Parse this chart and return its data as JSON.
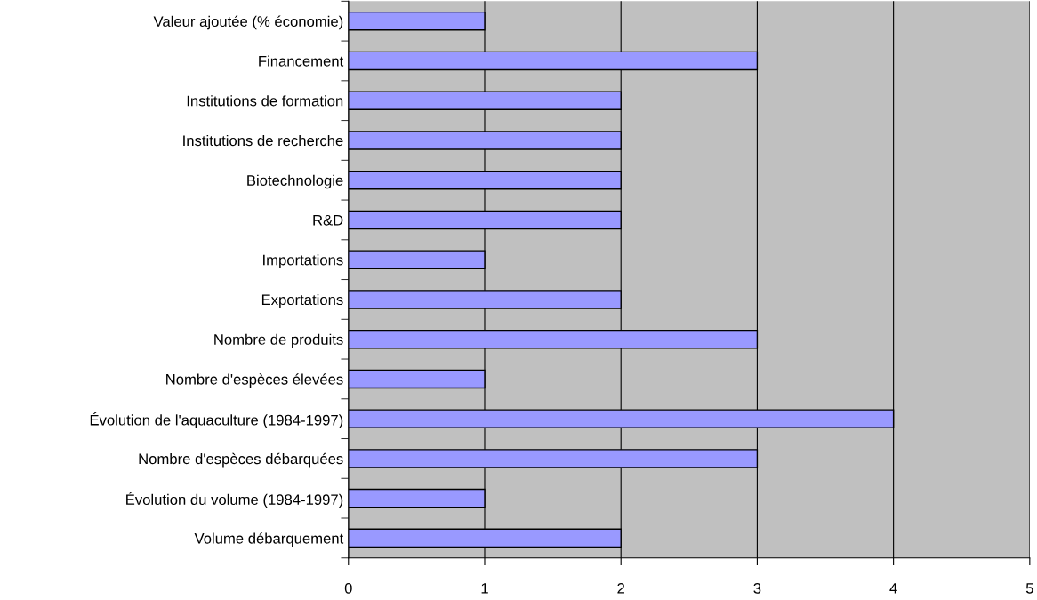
{
  "chart_data": {
    "type": "bar",
    "orientation": "horizontal",
    "categories": [
      "Valeur ajoutée (% économie)",
      "Financement",
      "Institutions de formation",
      "Institutions de recherche",
      "Biotechnologie",
      "R&D",
      "Importations",
      "Exportations",
      "Nombre de produits",
      "Nombre d'espèces élevées",
      "Évolution de l'aquaculture (1984-1997)",
      "Nombre d'espèces débarquées",
      "Évolution du volume (1984-1997)",
      "Volume débarquement"
    ],
    "values": [
      1,
      3,
      2,
      2,
      2,
      2,
      1,
      2,
      3,
      1,
      4,
      3,
      1,
      2
    ],
    "color": "#9999ff",
    "xlim": [
      0,
      5
    ],
    "xticks": [
      0,
      1,
      2,
      3,
      4,
      5
    ],
    "grid": "x",
    "legend": false
  }
}
